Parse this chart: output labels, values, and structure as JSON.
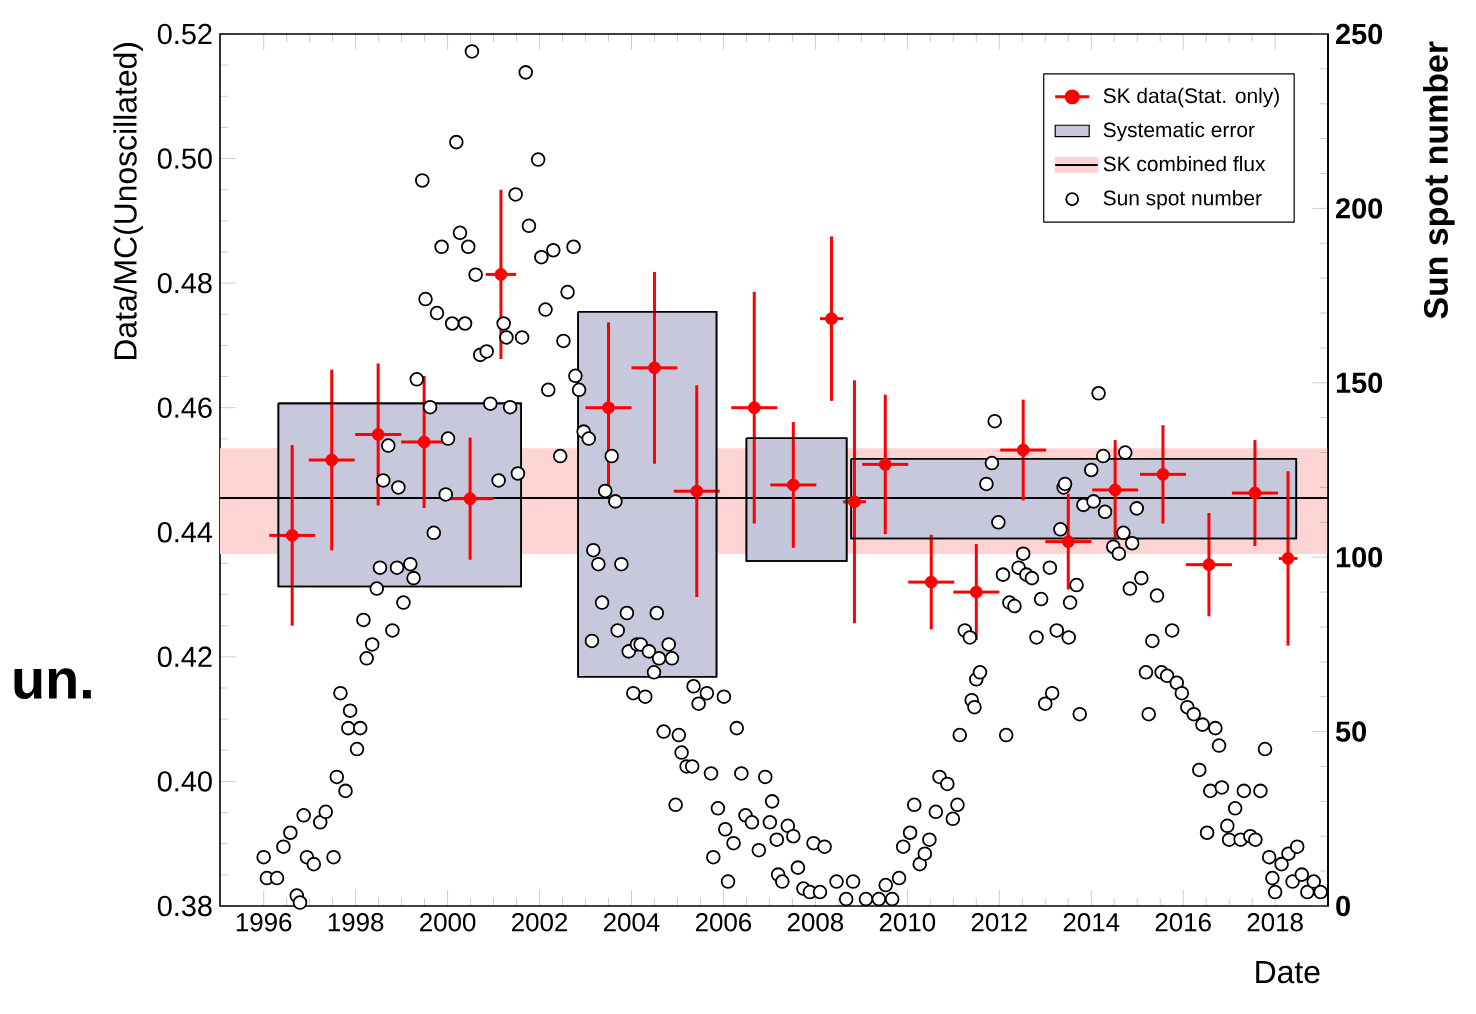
{
  "chart_data": {
    "type": "scatter",
    "xlabel": "Date",
    "ylabel": "Data/MC(Unoscillated)",
    "y2label": "Sun spot number",
    "legend": "top right",
    "annotations": [
      "un."
    ],
    "xlim": [
      1995.05,
      2019.15
    ],
    "xticks": [
      1996,
      1998,
      2000,
      2002,
      2004,
      2006,
      2008,
      2010,
      2012,
      2014,
      2016,
      2018
    ],
    "ylim": [
      0.38,
      0.52
    ],
    "yticks": [
      {
        "value": 0.38,
        "label": "0.38"
      },
      {
        "value": 0.4,
        "label": "0.40"
      },
      {
        "value": 0.42,
        "label": "0.42"
      },
      {
        "value": 0.44,
        "label": "0.44"
      },
      {
        "value": 0.46,
        "label": "0.46"
      },
      {
        "value": 0.48,
        "label": "0.48"
      },
      {
        "value": 0.5,
        "label": "0.50"
      },
      {
        "value": 0.52,
        "label": "0.52"
      }
    ],
    "y2lim": [
      0,
      250
    ],
    "y2ticks": [
      0,
      50,
      100,
      150,
      200,
      250
    ],
    "ref_lines": [
      {
        "axis": "y",
        "value": 0.4455,
        "label": "SK combined flux",
        "color": "#000000"
      }
    ],
    "bands": [
      {
        "axis": "y",
        "from": 0.4365,
        "to": 0.4535,
        "color": "#fcd4d4"
      }
    ],
    "series": [
      {
        "name": "SK data(Stat. only)",
        "color": "#ff0000",
        "marker": "circle",
        "x": [
          1996.62,
          1997.48,
          1998.49,
          1999.49,
          2000.49,
          2001.16,
          2003.5,
          2004.5,
          2005.42,
          2006.67,
          2007.52,
          2008.35,
          2008.85,
          2009.52,
          2010.52,
          2011.5,
          2012.52,
          2013.5,
          2014.52,
          2015.56,
          2016.56,
          2017.56,
          2018.28
        ],
        "values": [
          0.4395,
          0.4516,
          0.4557,
          0.4545,
          0.4454,
          0.4814,
          0.46,
          0.4664,
          0.4466,
          0.46,
          0.4476,
          0.4743,
          0.4449,
          0.4509,
          0.432,
          0.4304,
          0.4532,
          0.4385,
          0.4468,
          0.4493,
          0.4348,
          0.4463,
          0.4358
        ],
        "errors": [
          0.0145,
          0.0145,
          0.0114,
          0.0106,
          0.0098,
          0.0136,
          0.0137,
          0.0154,
          0.017,
          0.0186,
          0.0101,
          0.0132,
          0.0195,
          0.0112,
          0.0076,
          0.0077,
          0.0081,
          0.0077,
          0.008,
          0.0079,
          0.0083,
          0.0085,
          0.014
        ],
        "xerrors": [
          0.5,
          0.5,
          0.5,
          0.5,
          0.5,
          0.33,
          0.5,
          0.5,
          0.5,
          0.5,
          0.5,
          0.25,
          0.25,
          0.5,
          0.5,
          0.5,
          0.5,
          0.5,
          0.5,
          0.5,
          0.5,
          0.5,
          0.2
        ]
      },
      {
        "name": "Systematic error",
        "type": "area",
        "color": "#c8c8dc",
        "x": [
          1996.32,
          2001.6
        ],
        "values": [
          null,
          null
        ],
        "lower": [
          0.4313,
          0.4313
        ],
        "upper": [
          0.4607,
          0.4607
        ]
      },
      {
        "type": "area",
        "color": "#c8c8dc",
        "x": [
          2002.84,
          2005.85
        ],
        "values": [
          null,
          null
        ],
        "lower": [
          0.4168,
          0.4168
        ],
        "upper": [
          0.4754,
          0.4754
        ]
      },
      {
        "type": "area",
        "color": "#c6c6da",
        "x": [
          2006.5,
          2008.68
        ],
        "values": [
          null,
          null
        ],
        "lower": [
          0.4354,
          0.4354
        ],
        "upper": [
          0.4551,
          0.4551
        ]
      },
      {
        "type": "area",
        "color": "#c8c8dc",
        "x": [
          2008.78,
          2018.46
        ],
        "values": [
          null,
          null
        ],
        "lower": [
          0.439,
          0.439
        ],
        "upper": [
          0.4518,
          0.4518
        ]
      },
      {
        "name": "Sun spot number",
        "axis": "y2",
        "color": "#000000",
        "marker": "circle",
        "x": [
          1996.0,
          1996.07,
          1996.29,
          1996.43,
          1996.58,
          1996.72,
          1996.79,
          1996.87,
          1996.94,
          1997.09,
          1997.23,
          1997.35,
          1997.52,
          1997.59,
          1997.67,
          1997.78,
          1997.84,
          1997.88,
          1998.03,
          1998.1,
          1998.17,
          1998.24,
          1998.36,
          1998.46,
          1998.53,
          1998.6,
          1998.71,
          1998.8,
          1998.9,
          1998.93,
          1999.04,
          1999.19,
          1999.26,
          1999.33,
          1999.45,
          1999.52,
          1999.62,
          1999.7,
          1999.77,
          1999.87,
          1999.96,
          2000.01,
          2000.1,
          2000.19,
          2000.27,
          2000.38,
          2000.45,
          2000.53,
          2000.61,
          2000.71,
          2000.85,
          2000.93,
          2001.11,
          2001.22,
          2001.28,
          2001.36,
          2001.48,
          2001.53,
          2001.62,
          2001.7,
          2001.77,
          2001.97,
          2002.04,
          2002.13,
          2002.19,
          2002.3,
          2002.45,
          2002.52,
          2002.61,
          2002.74,
          2002.78,
          2002.86,
          2002.96,
          2003.07,
          2003.14,
          2003.17,
          2003.28,
          2003.36,
          2003.43,
          2003.57,
          2003.65,
          2003.7,
          2003.78,
          2003.9,
          2003.94,
          2004.04,
          2004.12,
          2004.2,
          2004.3,
          2004.38,
          2004.49,
          2004.55,
          2004.6,
          2004.7,
          2004.81,
          2004.88,
          2004.96,
          2005.03,
          2005.09,
          2005.2,
          2005.32,
          2005.35,
          2005.46,
          2005.64,
          2005.73,
          2005.78,
          2005.88,
          2006.01,
          2006.04,
          2006.1,
          2006.22,
          2006.29,
          2006.39,
          2006.48,
          2006.62,
          2006.77,
          2006.91,
          2007.01,
          2007.06,
          2007.16,
          2007.19,
          2007.28,
          2007.4,
          2007.52,
          2007.62,
          2007.74,
          2007.88,
          2007.96,
          2008.1,
          2008.2,
          2008.46,
          2008.67,
          2008.82,
          2009.1,
          2009.38,
          2009.53,
          2009.67,
          2009.82,
          2009.91,
          2010.06,
          2010.15,
          2010.27,
          2010.38,
          2010.48,
          2010.62,
          2010.7,
          2010.87,
          2010.99,
          2011.09,
          2011.14,
          2011.25,
          2011.36,
          2011.4,
          2011.46,
          2011.5,
          2011.58,
          2011.72,
          2011.84,
          2011.9,
          2011.98,
          2012.08,
          2012.15,
          2012.22,
          2012.33,
          2012.42,
          2012.52,
          2012.59,
          2012.71,
          2012.81,
          2012.91,
          2013.0,
          2013.1,
          2013.15,
          2013.25,
          2013.33,
          2013.4,
          2013.43,
          2013.51,
          2013.54,
          2013.68,
          2013.75,
          2013.83,
          2014.0,
          2014.05,
          2014.16,
          2014.26,
          2014.3,
          2014.48,
          2014.6,
          2014.7,
          2014.74,
          2014.84,
          2014.89,
          2014.99,
          2015.09,
          2015.19,
          2015.25,
          2015.33,
          2015.43,
          2015.53,
          2015.65,
          2015.76,
          2015.86,
          2015.97,
          2016.09,
          2016.23,
          2016.35,
          2016.42,
          2016.52,
          2016.59,
          2016.7,
          2016.78,
          2016.84,
          2016.96,
          2017.0,
          2017.13,
          2017.25,
          2017.32,
          2017.46,
          2017.57,
          2017.68,
          2017.78,
          2017.87,
          2017.94,
          2018.0,
          2018.14,
          2018.29,
          2018.38,
          2018.48,
          2018.58,
          2018.7,
          2018.84,
          2018.99
        ],
        "values": [
          14,
          8,
          8,
          17,
          21,
          3,
          1,
          26,
          14,
          12,
          24,
          27,
          14,
          37,
          61,
          33,
          51,
          56,
          45,
          51,
          82,
          71,
          75,
          91,
          97,
          122,
          132,
          79,
          97,
          120,
          87,
          98,
          94,
          151,
          208,
          174,
          143,
          107,
          170,
          189,
          118,
          134,
          167,
          219,
          193,
          167,
          189,
          245,
          181,
          158,
          159,
          144,
          122,
          167,
          163,
          143,
          204,
          124,
          163,
          239,
          195,
          214,
          186,
          171,
          148,
          188,
          129,
          162,
          176,
          189,
          152,
          148,
          136,
          134,
          76,
          102,
          98,
          87,
          119,
          129,
          116,
          79,
          98,
          84,
          73,
          61,
          75,
          75,
          60,
          73,
          67,
          84,
          71,
          50,
          75,
          71,
          29,
          49,
          44,
          40,
          40,
          63,
          58,
          61,
          38,
          14,
          28,
          60,
          22,
          7,
          18,
          51,
          38,
          26,
          24,
          16,
          37,
          24,
          30,
          19,
          9,
          7,
          23,
          20,
          11,
          5,
          4,
          18,
          4,
          17,
          7,
          2,
          7,
          2,
          2,
          6,
          2,
          8,
          17,
          21,
          29,
          12,
          15,
          19,
          27,
          37,
          35,
          25,
          29,
          49,
          79,
          77,
          59,
          57,
          65,
          67,
          121,
          127,
          139,
          110,
          95,
          49,
          87,
          86,
          97,
          101,
          95,
          94,
          77,
          88,
          58,
          97,
          61,
          79,
          108,
          120,
          121,
          77,
          87,
          92,
          55,
          115,
          125,
          116,
          147,
          129,
          113,
          103,
          101,
          107,
          130,
          91,
          104,
          114,
          94,
          67,
          55,
          76,
          89,
          67,
          66,
          79,
          64,
          61,
          57,
          55,
          39,
          52,
          21,
          33,
          51,
          46,
          34,
          23,
          19,
          28,
          19,
          33,
          20,
          19,
          33,
          45,
          14,
          8,
          4,
          12,
          15,
          7,
          17,
          9,
          4,
          7,
          4
        ]
      }
    ]
  }
}
